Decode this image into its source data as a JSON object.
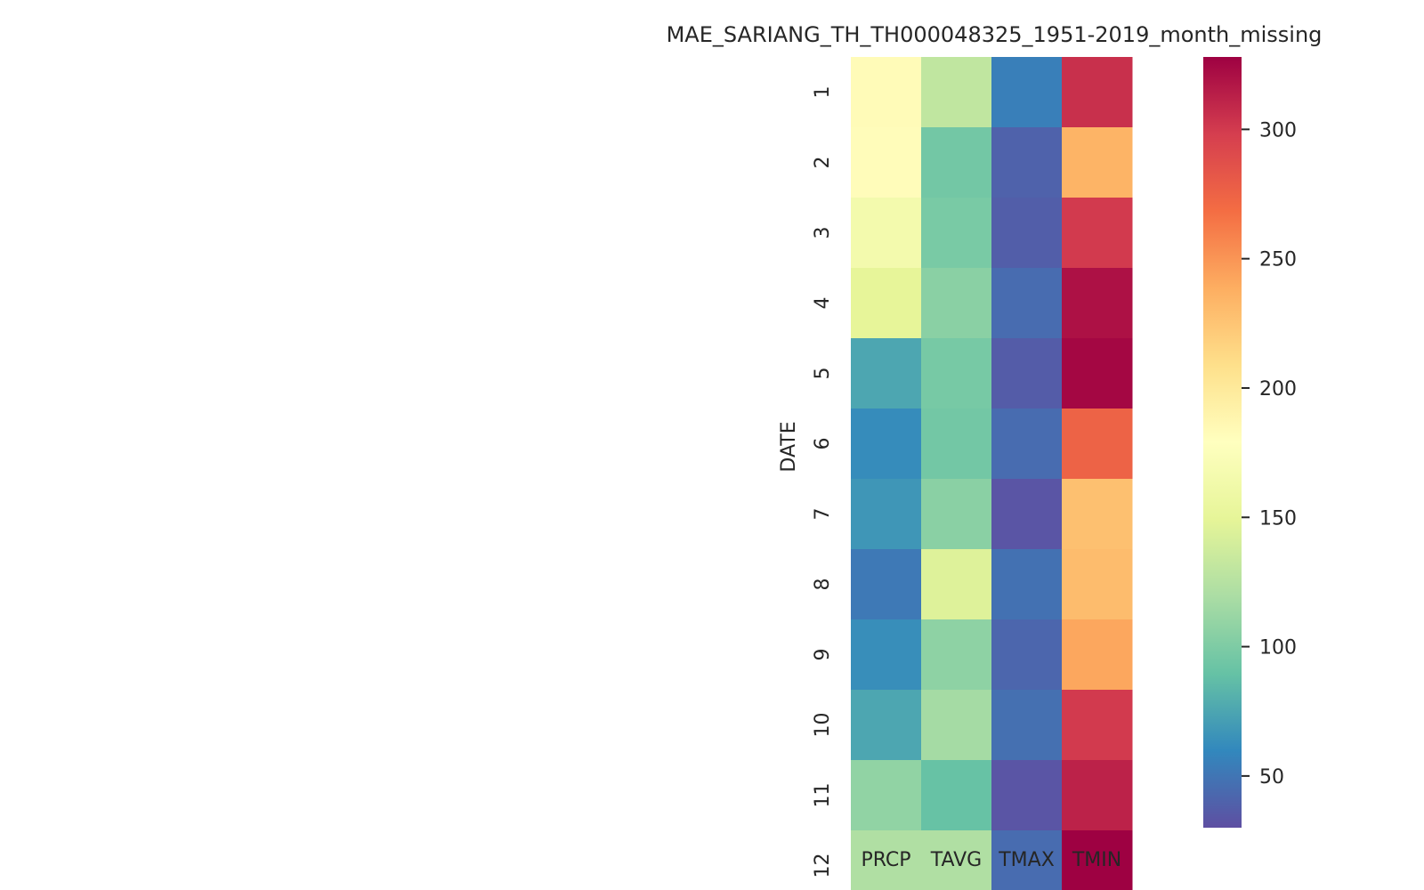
{
  "chart_data": {
    "type": "heatmap",
    "title": "MAE_SARIANG_TH_TH000048325_1951-2019_month_missing",
    "xlabel": "",
    "ylabel": "DATE",
    "x_categories": [
      "PRCP",
      "TAVG",
      "TMAX",
      "TMIN"
    ],
    "y_categories": [
      "1",
      "2",
      "3",
      "4",
      "5",
      "6",
      "7",
      "8",
      "9",
      "10",
      "11",
      "12"
    ],
    "values": [
      [
        183,
        130,
        55,
        305
      ],
      [
        182,
        95,
        40,
        235
      ],
      [
        165,
        98,
        38,
        300
      ],
      [
        150,
        105,
        45,
        320
      ],
      [
        75,
        97,
        37,
        325
      ],
      [
        62,
        95,
        45,
        275
      ],
      [
        67,
        105,
        33,
        228
      ],
      [
        52,
        145,
        48,
        230
      ],
      [
        63,
        107,
        42,
        242
      ],
      [
        75,
        117,
        47,
        300
      ],
      [
        108,
        90,
        33,
        312
      ],
      [
        122,
        122,
        45,
        328
      ]
    ],
    "colormap": "Spectral_r",
    "vmin": 30,
    "vmax": 328,
    "colorbar_ticks": [
      50,
      100,
      150,
      200,
      250,
      300
    ],
    "grid": false,
    "colorbar_position": "right"
  }
}
